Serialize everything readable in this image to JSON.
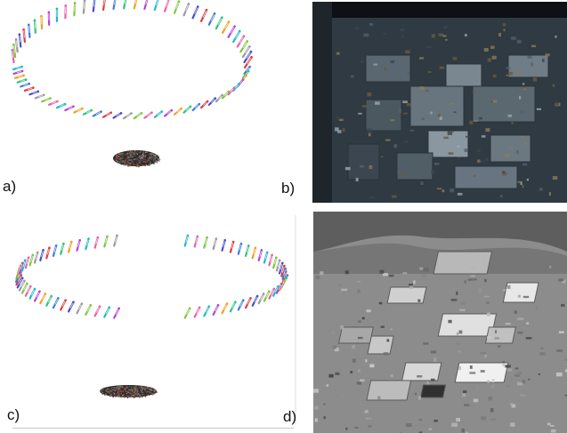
{
  "figure": {
    "panels": [
      {
        "id": "a",
        "label": "a)",
        "content": "camera-trajectory-ellipse-with-point-cloud"
      },
      {
        "id": "b",
        "label": "b)",
        "content": "dark-aerial-photo-industrial-site"
      },
      {
        "id": "c",
        "label": "c)",
        "content": "camera-trajectory-ring-with-point-cloud"
      },
      {
        "id": "d",
        "label": "d)",
        "content": "grayscale-aerial-photo-industrial-site"
      }
    ]
  },
  "colors": {
    "background": "#ffffff",
    "camera_palette": [
      "#e23b3b",
      "#3b7be2",
      "#2ec27e",
      "#f0a020",
      "#b445d0",
      "#20b8c8",
      "#e85fa8",
      "#7cc840",
      "#9a9a9a",
      "#444ccc"
    ],
    "photo_b_tone": "#3a4650",
    "photo_d_tone": "#8a8a8a"
  }
}
